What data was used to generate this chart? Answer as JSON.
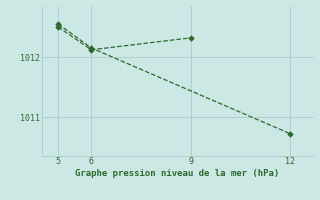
{
  "line1_x": [
    5,
    6,
    12
  ],
  "line1_y": [
    1012.55,
    1012.15,
    1010.72
  ],
  "line2_x": [
    5,
    6,
    9
  ],
  "line2_y": [
    1012.5,
    1012.12,
    1012.32
  ],
  "line_color": "#2d6a2d",
  "bg_color": "#cce8e4",
  "grid_color": "#aaccc8",
  "xlabel": "Graphe pression niveau de la mer (hPa)",
  "xticks": [
    5,
    6,
    9,
    12
  ],
  "yticks": [
    1011,
    1012
  ],
  "xlim": [
    4.5,
    12.7
  ],
  "ylim": [
    1010.35,
    1012.85
  ]
}
